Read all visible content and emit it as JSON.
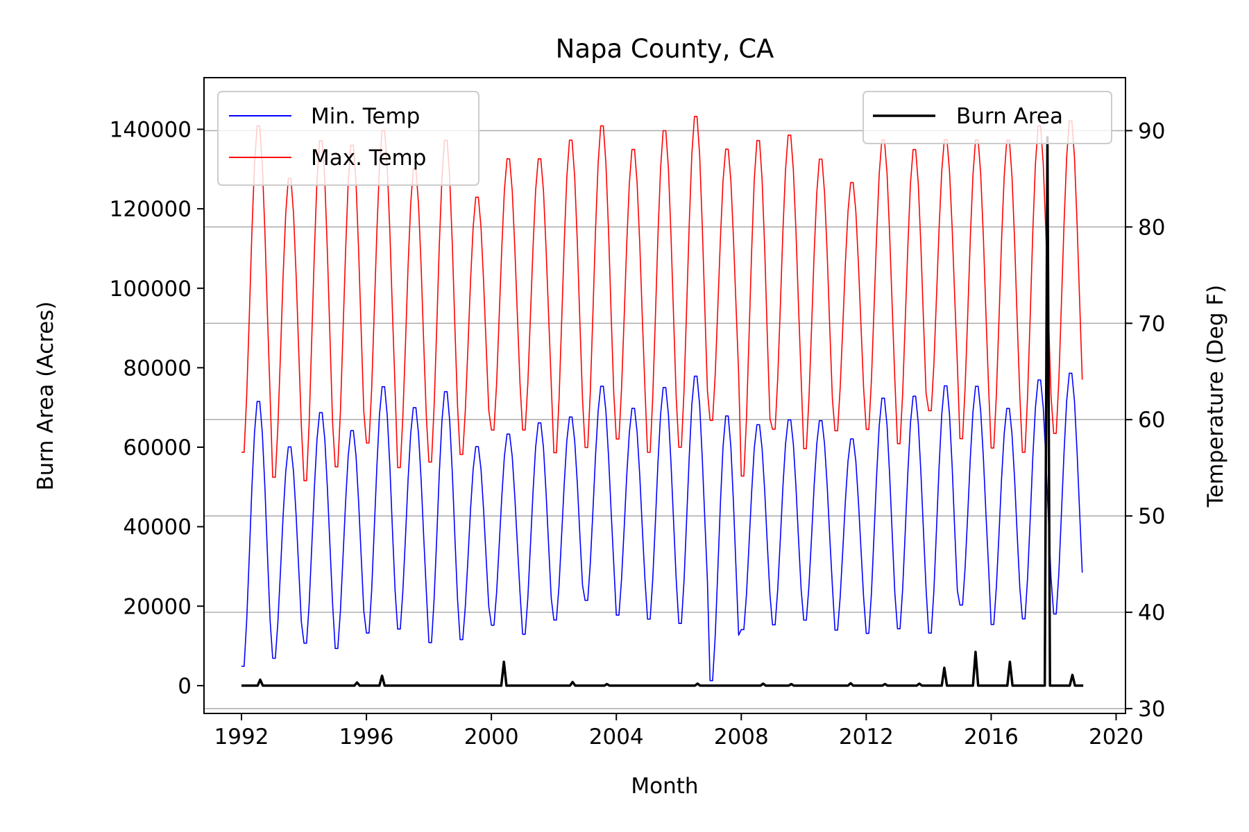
{
  "chart_data": {
    "type": "line",
    "title": "Napa County, CA",
    "xlabel": "Month",
    "ylabel_left": "Burn Area (Acres)",
    "ylabel_right": "Temperature (Deg F)",
    "x_ticks": [
      "1992",
      "1996",
      "2000",
      "2004",
      "2008",
      "2012",
      "2016",
      "2020"
    ],
    "y_left_ticks": [
      "0",
      "20000",
      "40000",
      "60000",
      "80000",
      "100000",
      "120000",
      "140000"
    ],
    "y_right_ticks": [
      "30",
      "40",
      "50",
      "60",
      "70",
      "80",
      "90"
    ],
    "xlim": [
      1990.8,
      2020.3
    ],
    "ylim_left": [
      -7000,
      153000
    ],
    "ylim_right": [
      29.5,
      95.5
    ],
    "grid": "horizontal lines on right temperature axis",
    "legend_left": {
      "placement": "upper-left",
      "entries": [
        "Min. Temp",
        "Max. Temp"
      ]
    },
    "legend_right": {
      "placement": "upper-right",
      "entries": [
        "Burn Area"
      ]
    },
    "series": [
      {
        "name": "Min. Temp",
        "axis": "right",
        "color": "#0000ff",
        "annual_peaks": [
          62.3,
          57.5,
          61.1,
          59.2,
          63.8,
          61.6,
          63.3,
          57.5,
          58.8,
          60.0,
          60.6,
          63.8,
          61.5,
          63.7,
          64.9,
          60.8,
          59.8,
          60.3,
          60.2,
          58.3,
          62.6,
          62.8,
          63.9,
          63.8,
          61.5,
          64.5,
          65.2
        ],
        "annual_troughs": [
          33.5,
          34.5,
          36.0,
          35.5,
          37.0,
          37.5,
          36.0,
          36.5,
          38.0,
          37.0,
          38.5,
          40.5,
          39.0,
          38.5,
          38.0,
          32.0,
          37.5,
          38.0,
          38.5,
          37.5,
          37.0,
          37.5,
          37.0,
          40.0,
          38.0,
          38.5,
          39.0
        ]
      },
      {
        "name": "Max. Temp",
        "axis": "right",
        "color": "#ff0000",
        "annual_peaks": [
          91.0,
          85.5,
          89.5,
          89.0,
          90.5,
          86.5,
          89.5,
          83.5,
          87.5,
          87.5,
          89.5,
          91.0,
          88.5,
          90.5,
          92.0,
          88.5,
          89.5,
          90.0,
          87.5,
          85.0,
          89.5,
          88.5,
          89.5,
          89.5,
          89.5,
          91.0,
          91.5
        ],
        "annual_troughs": [
          55.5,
          53.0,
          52.5,
          54.0,
          56.5,
          54.0,
          54.5,
          55.5,
          58.0,
          58.0,
          55.5,
          56.0,
          57.0,
          55.5,
          56.0,
          59.0,
          53.0,
          58.0,
          56.0,
          58.0,
          58.0,
          56.5,
          60.0,
          57.0,
          56.0,
          55.5,
          57.5
        ]
      },
      {
        "name": "Burn Area",
        "axis": "left",
        "color": "#000000",
        "fire_events": [
          {
            "date": 1992.6,
            "acres": 1500
          },
          {
            "date": 1995.7,
            "acres": 800
          },
          {
            "date": 1996.5,
            "acres": 2500
          },
          {
            "date": 2000.4,
            "acres": 6000
          },
          {
            "date": 2002.6,
            "acres": 900
          },
          {
            "date": 2003.7,
            "acres": 400
          },
          {
            "date": 2006.6,
            "acres": 500
          },
          {
            "date": 2008.7,
            "acres": 500
          },
          {
            "date": 2009.6,
            "acres": 400
          },
          {
            "date": 2011.5,
            "acres": 600
          },
          {
            "date": 2012.6,
            "acres": 400
          },
          {
            "date": 2013.7,
            "acres": 500
          },
          {
            "date": 2014.5,
            "acres": 4500
          },
          {
            "date": 2015.5,
            "acres": 8500
          },
          {
            "date": 2016.6,
            "acres": 6000
          },
          {
            "date": 2017.8,
            "acres": 138000
          },
          {
            "date": 2018.6,
            "acres": 2700
          }
        ]
      }
    ]
  }
}
